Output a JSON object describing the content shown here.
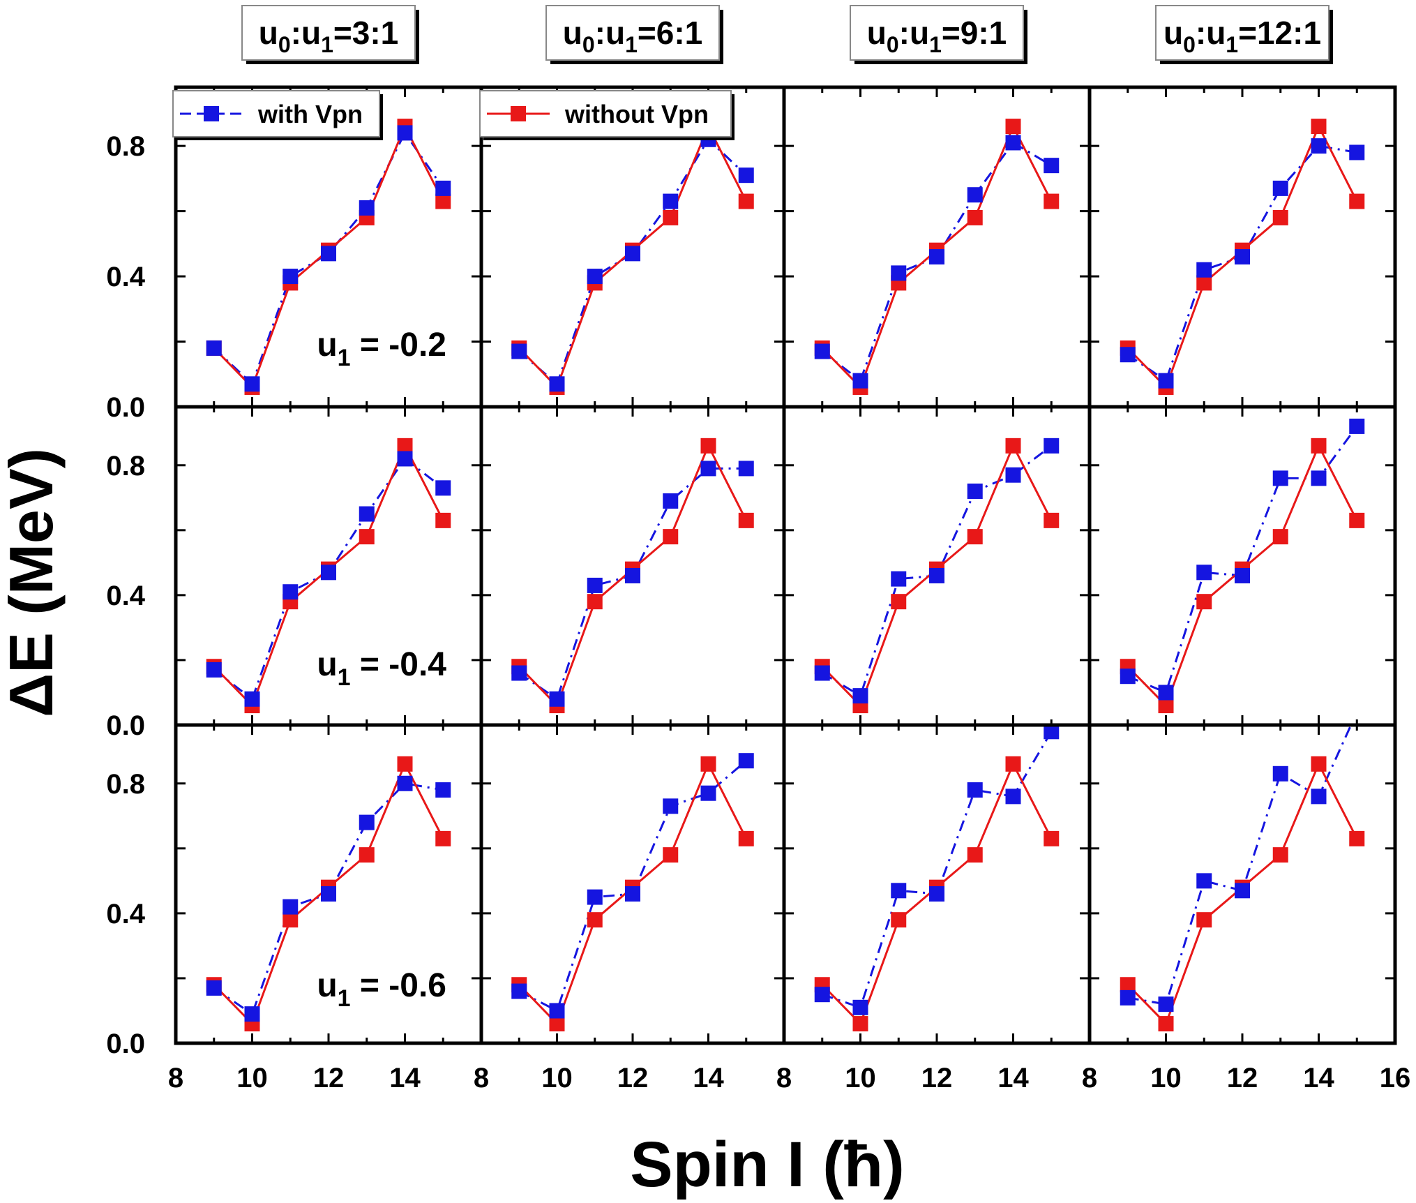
{
  "figure": {
    "xlabel": "Spin I (ħ)",
    "ylabel": "ΔE (MeV)",
    "columns": [
      "u0:u1=3:1",
      "u0:u1=6:1",
      "u0:u1=9:1",
      "u0:u1=12:1"
    ],
    "column_labels": [
      {
        "prefix": "u",
        "sub0": "0",
        "mid": ":u",
        "sub1": "1",
        "ratio": "=3:1"
      },
      {
        "prefix": "u",
        "sub0": "0",
        "mid": ":u",
        "sub1": "1",
        "ratio": "=6:1"
      },
      {
        "prefix": "u",
        "sub0": "0",
        "mid": ":u",
        "sub1": "1",
        "ratio": "=9:1"
      },
      {
        "prefix": "u",
        "sub0": "0",
        "mid": ":u",
        "sub1": "1",
        "ratio": "=12:1"
      }
    ],
    "rows": [
      "u1 = -0.2",
      "u1 = -0.4",
      "u1 = -0.6"
    ],
    "row_labels": [
      {
        "prefix": "u",
        "sub": "1",
        "value": " = -0.2"
      },
      {
        "prefix": "u",
        "sub": "1",
        "value": " = -0.4"
      },
      {
        "prefix": "u",
        "sub": "1",
        "value": " = -0.6"
      }
    ],
    "x_ticks": [
      "8",
      "10",
      "12",
      "14",
      "16"
    ],
    "y_ticks": [
      "0.0",
      "0.4",
      "0.8"
    ],
    "legend": [
      {
        "label": "with Vpn",
        "color": "#1515e0",
        "style": "dash-dot"
      },
      {
        "label": "without Vpn",
        "color": "#e81818",
        "style": "solid"
      }
    ],
    "colors": {
      "with": "#1515e0",
      "without": "#e81818",
      "axis": "#000000"
    }
  },
  "chart_data": {
    "type": "line",
    "layout": "grid 3x4",
    "xlabel": "Spin I (ħ)",
    "ylabel": "ΔE (MeV)",
    "xlim": [
      8,
      16
    ],
    "ylim": [
      0,
      0.98
    ],
    "x": [
      9,
      10,
      11,
      12,
      13,
      14,
      15
    ],
    "without_vpn": [
      0.18,
      0.06,
      0.38,
      0.48,
      0.58,
      0.86,
      0.63
    ],
    "with_vpn": [
      [
        [
          0.18,
          0.07,
          0.4,
          0.47,
          0.61,
          0.84,
          0.67
        ],
        [
          0.17,
          0.07,
          0.4,
          0.47,
          0.63,
          0.82,
          0.71
        ],
        [
          0.17,
          0.08,
          0.41,
          0.46,
          0.65,
          0.81,
          0.74
        ],
        [
          0.16,
          0.08,
          0.42,
          0.46,
          0.67,
          0.8,
          0.78
        ]
      ],
      [
        [
          0.17,
          0.08,
          0.41,
          0.47,
          0.65,
          0.82,
          0.73
        ],
        [
          0.16,
          0.08,
          0.43,
          0.46,
          0.69,
          0.79,
          0.79
        ],
        [
          0.16,
          0.09,
          0.45,
          0.46,
          0.72,
          0.77,
          0.86
        ],
        [
          0.15,
          0.1,
          0.47,
          0.46,
          0.76,
          0.76,
          0.92
        ]
      ],
      [
        [
          0.17,
          0.09,
          0.42,
          0.46,
          0.68,
          0.8,
          0.78
        ],
        [
          0.16,
          0.1,
          0.45,
          0.46,
          0.73,
          0.77,
          0.87
        ],
        [
          0.15,
          0.11,
          0.47,
          0.46,
          0.78,
          0.76,
          0.96
        ],
        [
          0.14,
          0.12,
          0.5,
          0.47,
          0.83,
          0.76,
          1.02
        ]
      ]
    ]
  }
}
